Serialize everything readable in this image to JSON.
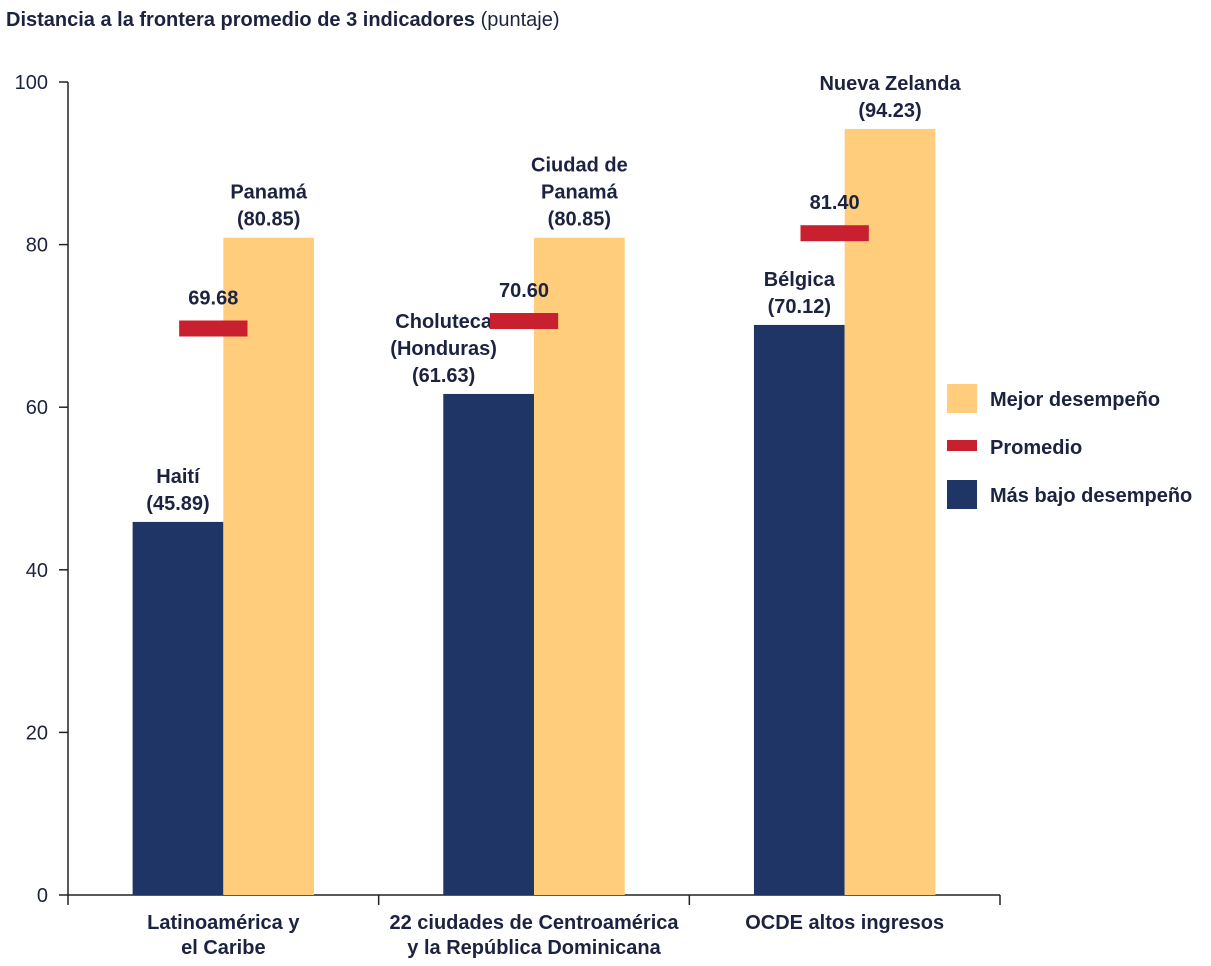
{
  "chart_data": {
    "type": "bar",
    "title": "Distancia a la frontera promedio de 3 indicadores",
    "subtitle": "(puntaje)",
    "categories": [
      [
        "Latinoamérica y",
        "el Caribe"
      ],
      [
        "22 ciudades de Centroamérica",
        "y la República Dominicana"
      ],
      [
        "OCDE altos ingresos"
      ]
    ],
    "series": [
      {
        "name": "Mejor desempeño",
        "kind": "bar",
        "color": "#ffcd7c",
        "values": [
          80.85,
          80.85,
          94.23
        ],
        "value_labels": [
          "(80.85)",
          "(80.85)",
          "(94.23)"
        ],
        "point_labels": [
          [
            "Panamá"
          ],
          [
            "Ciudad de",
            "Panamá"
          ],
          [
            "Nueva Zelanda"
          ]
        ]
      },
      {
        "name": "Promedio",
        "kind": "marker",
        "color": "#c8202f",
        "values": [
          69.68,
          70.6,
          81.4
        ],
        "value_labels": [
          "69.68",
          "70.60",
          "81.40"
        ]
      },
      {
        "name": "Más bajo desempeño",
        "kind": "bar",
        "color": "#1f3566",
        "values": [
          45.89,
          61.63,
          70.12
        ],
        "value_labels": [
          "(45.89)",
          "(61.63)",
          "(70.12)"
        ],
        "point_labels": [
          [
            "Haití"
          ],
          [
            "Choluteca",
            "(Honduras)"
          ],
          [
            "Bélgica"
          ]
        ]
      }
    ],
    "ylim": [
      0,
      100
    ],
    "yticks": [
      0,
      20,
      40,
      60,
      80,
      100
    ],
    "grid": false,
    "legend": "right"
  }
}
